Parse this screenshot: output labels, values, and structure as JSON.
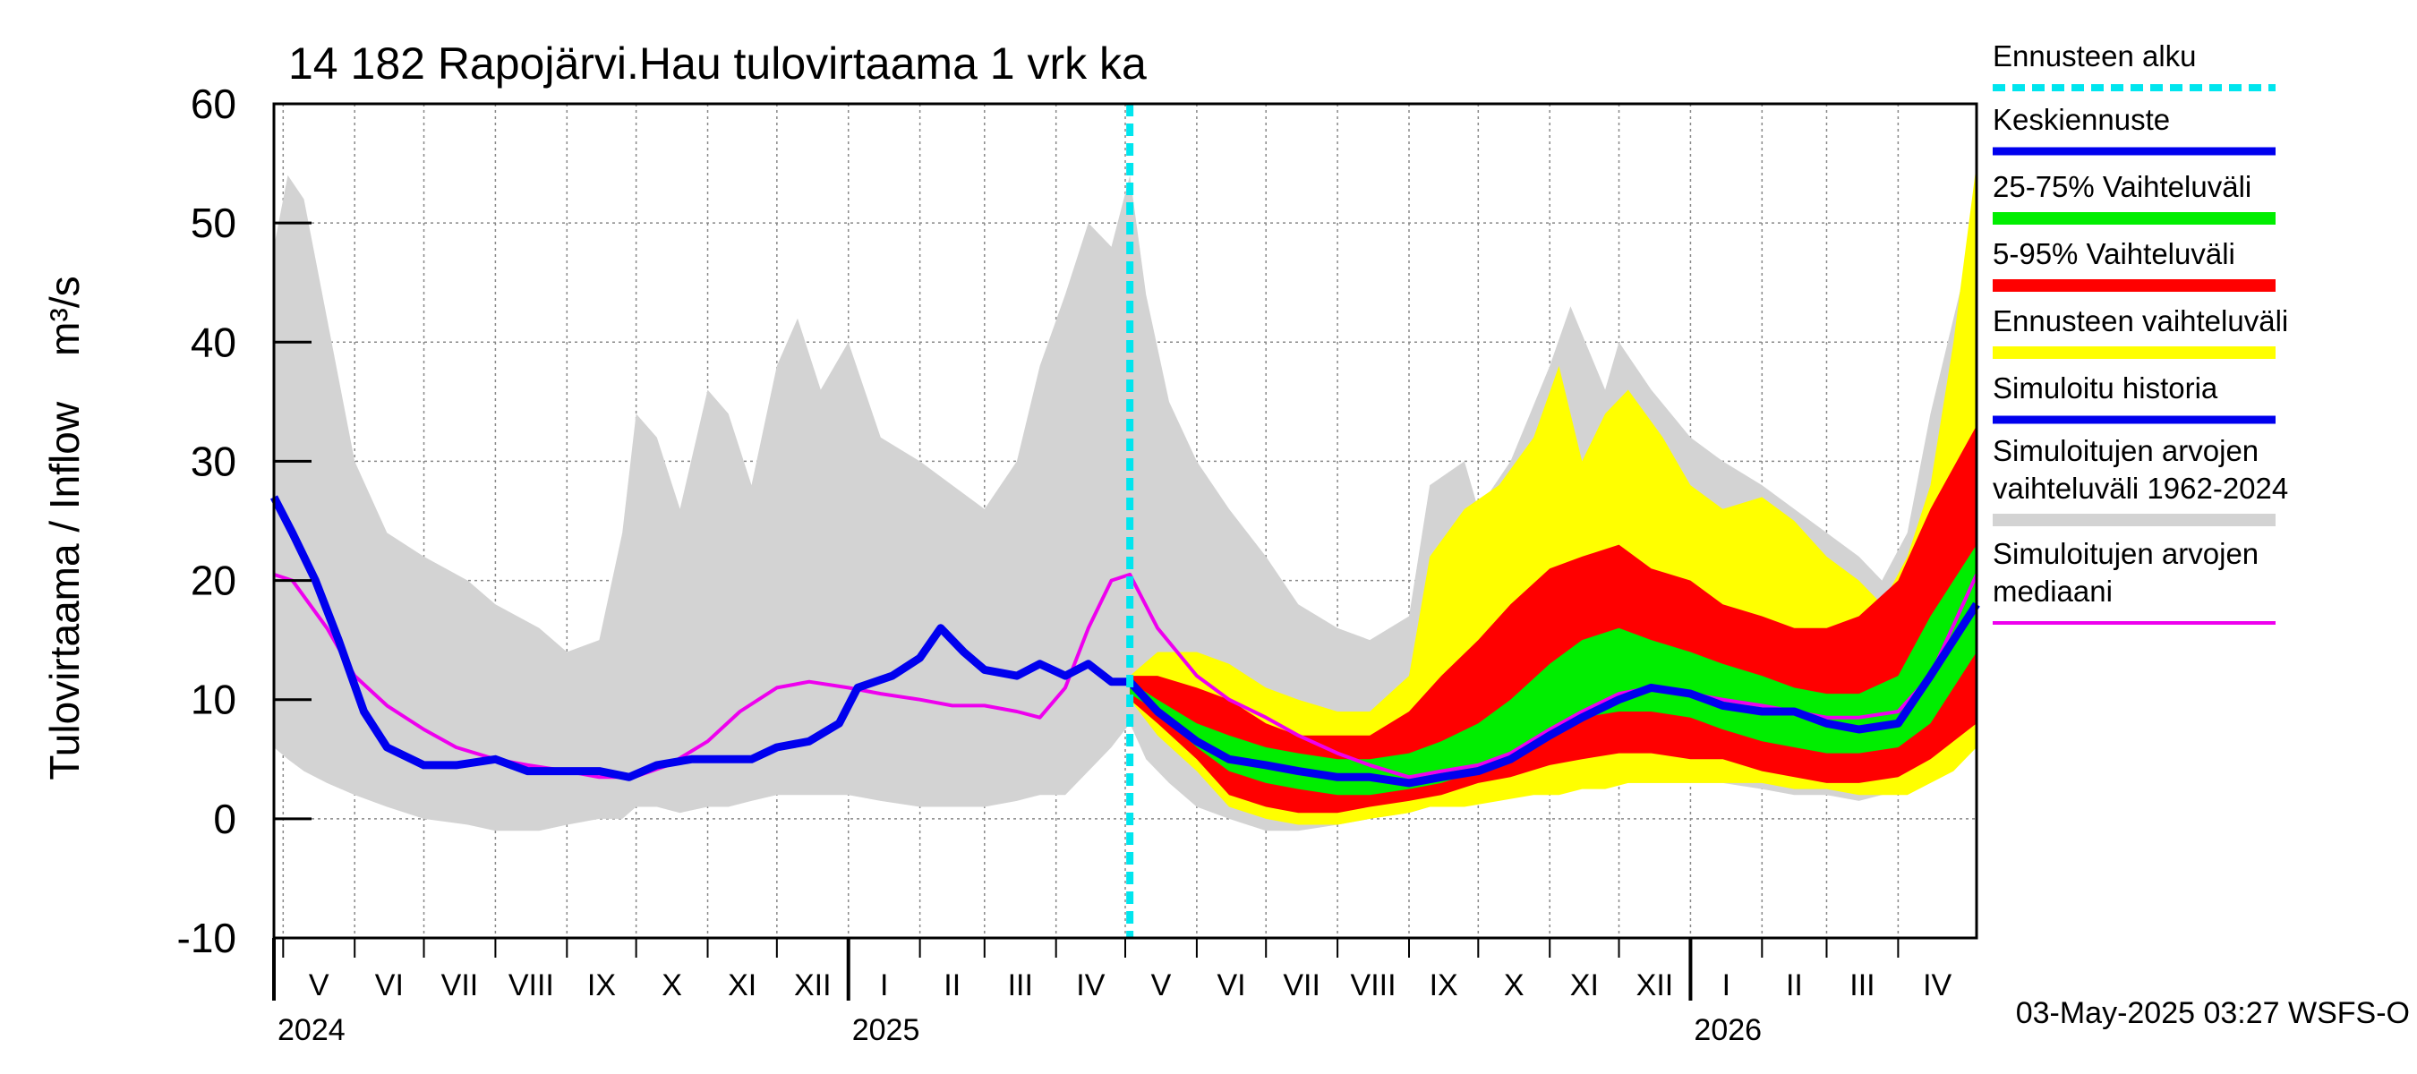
{
  "chart_data": {
    "type": "area",
    "title": "14 182 Rapojärvi.Hau tulovirtaama 1 vrk ka",
    "ylabel": "Tulovirtaama / Inflow    m³/s",
    "ylim": [
      -10,
      60
    ],
    "yticks": [
      -10,
      0,
      10,
      20,
      30,
      40,
      50,
      60
    ],
    "xlim": [
      "2024-04-27",
      "2026-05-05"
    ],
    "grid": true,
    "forecast_start": "2025-05-03",
    "months": [
      {
        "label": "V",
        "start": "2024-05-01"
      },
      {
        "label": "VI",
        "start": "2024-06-01"
      },
      {
        "label": "VII",
        "start": "2024-07-01"
      },
      {
        "label": "VIII",
        "start": "2024-08-01"
      },
      {
        "label": "IX",
        "start": "2024-09-01"
      },
      {
        "label": "X",
        "start": "2024-10-01"
      },
      {
        "label": "XI",
        "start": "2024-11-01"
      },
      {
        "label": "XII",
        "start": "2024-12-01"
      },
      {
        "label": "I",
        "start": "2025-01-01"
      },
      {
        "label": "II",
        "start": "2025-02-01"
      },
      {
        "label": "III",
        "start": "2025-03-01"
      },
      {
        "label": "IV",
        "start": "2025-04-01"
      },
      {
        "label": "V",
        "start": "2025-05-01"
      },
      {
        "label": "VI",
        "start": "2025-06-01"
      },
      {
        "label": "VII",
        "start": "2025-07-01"
      },
      {
        "label": "VIII",
        "start": "2025-08-01"
      },
      {
        "label": "IX",
        "start": "2025-09-01"
      },
      {
        "label": "X",
        "start": "2025-10-01"
      },
      {
        "label": "XI",
        "start": "2025-11-01"
      },
      {
        "label": "XII",
        "start": "2025-12-01"
      },
      {
        "label": "I",
        "start": "2026-01-01"
      },
      {
        "label": "II",
        "start": "2026-02-01"
      },
      {
        "label": "III",
        "start": "2026-03-01"
      },
      {
        "label": "IV",
        "start": "2026-04-01"
      }
    ],
    "years": [
      {
        "label": "2024",
        "date": "2024-04-27"
      },
      {
        "label": "2025",
        "date": "2025-01-01"
      },
      {
        "label": "2026",
        "date": "2026-01-01"
      }
    ],
    "legend": [
      {
        "label": "Ennusteen alku",
        "color": "#00e5ee",
        "style": "dashed"
      },
      {
        "label": "Keskiennuste",
        "color": "#0000ee",
        "style": "line"
      },
      {
        "label": "25-75% Vaihteluväli",
        "color": "#00ee00",
        "style": "band"
      },
      {
        "label": "5-95% Vaihteluväli",
        "color": "#ff0000",
        "style": "band"
      },
      {
        "label": "Ennusteen vaihteluväli",
        "color": "#ffff00",
        "style": "band"
      },
      {
        "label": "Simuloitu historia",
        "color": "#0000ee",
        "style": "line"
      },
      {
        "label": "Simuloitujen arvojen\nvaihteluväli 1962-2024",
        "color": "#d3d3d3",
        "style": "band"
      },
      {
        "label": "Simuloitujen arvojen\nmediaani",
        "color": "#ee00ee",
        "style": "line"
      }
    ],
    "series": [
      {
        "name": "Simuloitujen arvojen vaihteluväli 1962-2024",
        "kind": "band",
        "color": "#d3d3d3",
        "x": [
          "2024-04-27",
          "2024-05-03",
          "2024-05-10",
          "2024-05-20",
          "2024-06-01",
          "2024-06-15",
          "2024-07-01",
          "2024-07-20",
          "2024-08-01",
          "2024-08-20",
          "2024-09-01",
          "2024-09-15",
          "2024-09-25",
          "2024-10-01",
          "2024-10-10",
          "2024-10-20",
          "2024-11-01",
          "2024-11-10",
          "2024-11-20",
          "2024-12-01",
          "2024-12-10",
          "2024-12-20",
          "2025-01-01",
          "2025-01-15",
          "2025-02-01",
          "2025-02-15",
          "2025-03-01",
          "2025-03-15",
          "2025-03-25",
          "2025-04-05",
          "2025-04-15",
          "2025-04-25",
          "2025-05-03",
          "2025-05-10",
          "2025-05-20",
          "2025-06-01",
          "2025-06-15",
          "2025-07-01",
          "2025-07-15",
          "2025-08-01",
          "2025-08-15",
          "2025-09-01",
          "2025-09-10",
          "2025-09-25",
          "2025-10-01",
          "2025-10-15",
          "2025-11-01",
          "2025-11-10",
          "2025-11-25",
          "2025-12-01",
          "2025-12-15",
          "2026-01-01",
          "2026-01-15",
          "2026-02-01",
          "2026-02-15",
          "2026-03-01",
          "2026-03-15",
          "2026-03-25",
          "2026-04-05",
          "2026-04-15",
          "2026-04-25",
          "2026-05-05"
        ],
        "upper": [
          48,
          54,
          52,
          42,
          30,
          24,
          22,
          20,
          18,
          16,
          14,
          15,
          24,
          34,
          32,
          26,
          36,
          34,
          28,
          38,
          42,
          36,
          40,
          32,
          30,
          28,
          26,
          30,
          38,
          44,
          50,
          48,
          54,
          44,
          35,
          30,
          26,
          22,
          18,
          16,
          15,
          17,
          28,
          30,
          26,
          30,
          38,
          43,
          36,
          40,
          36,
          32,
          30,
          28,
          26,
          24,
          22,
          20,
          24,
          34,
          42,
          50
        ],
        "lower": [
          6,
          5,
          4,
          3,
          2,
          1,
          0,
          -0.5,
          -1,
          -1,
          -0.5,
          0,
          0,
          1,
          1,
          0.5,
          1,
          1,
          1.5,
          2,
          2,
          2,
          2,
          1.5,
          1,
          1,
          1,
          1.5,
          2,
          2,
          4,
          6,
          8,
          5,
          3,
          1,
          0,
          -1,
          -1,
          -0.5,
          0,
          0.5,
          1,
          1.5,
          2,
          2,
          2.5,
          2.5,
          3,
          3,
          3,
          3,
          3,
          2.5,
          2,
          2,
          1.5,
          2,
          2.5,
          3,
          5,
          7
        ]
      },
      {
        "name": "Ennusteen vaihteluväli",
        "kind": "band",
        "color": "#ffff00",
        "x": [
          "2025-05-03",
          "2025-05-15",
          "2025-06-01",
          "2025-06-15",
          "2025-07-01",
          "2025-07-15",
          "2025-08-01",
          "2025-08-15",
          "2025-09-01",
          "2025-09-10",
          "2025-09-25",
          "2025-10-10",
          "2025-10-25",
          "2025-11-05",
          "2025-11-15",
          "2025-11-25",
          "2025-12-05",
          "2025-12-20",
          "2026-01-01",
          "2026-01-15",
          "2026-02-01",
          "2026-02-15",
          "2026-03-01",
          "2026-03-15",
          "2026-03-25",
          "2026-04-05",
          "2026-04-15",
          "2026-04-25",
          "2026-05-05"
        ],
        "upper": [
          12,
          14,
          14,
          13,
          11,
          10,
          9,
          9,
          12,
          22,
          26,
          28,
          32,
          38,
          30,
          34,
          36,
          32,
          28,
          26,
          27,
          25,
          22,
          20,
          18,
          22,
          28,
          40,
          55
        ],
        "lower": [
          10,
          7,
          4,
          1,
          0,
          -0.5,
          -0.5,
          0,
          0.5,
          1,
          1,
          1.5,
          2,
          2,
          2.5,
          2.5,
          3,
          3,
          3,
          3,
          3,
          2.5,
          2.5,
          2,
          2,
          2,
          3,
          4,
          6
        ]
      },
      {
        "name": "5-95% Vaihteluväli",
        "kind": "band",
        "color": "#ff0000",
        "x": [
          "2025-05-03",
          "2025-05-15",
          "2025-06-01",
          "2025-06-15",
          "2025-07-01",
          "2025-07-15",
          "2025-08-01",
          "2025-08-15",
          "2025-09-01",
          "2025-09-15",
          "2025-10-01",
          "2025-10-15",
          "2025-11-01",
          "2025-11-15",
          "2025-12-01",
          "2025-12-15",
          "2026-01-01",
          "2026-01-15",
          "2026-02-01",
          "2026-02-15",
          "2026-03-01",
          "2026-03-15",
          "2026-04-01",
          "2026-04-15",
          "2026-05-05"
        ],
        "upper": [
          12,
          12,
          11,
          10,
          8,
          7,
          7,
          7,
          9,
          12,
          15,
          18,
          21,
          22,
          23,
          21,
          20,
          18,
          17,
          16,
          16,
          17,
          20,
          26,
          33
        ],
        "lower": [
          10,
          8,
          5,
          2,
          1,
          0.5,
          0.5,
          1,
          1.5,
          2,
          3,
          3.5,
          4.5,
          5,
          5.5,
          5.5,
          5,
          5,
          4,
          3.5,
          3,
          3,
          3.5,
          5,
          8
        ]
      },
      {
        "name": "25-75% Vaihteluväli",
        "kind": "band",
        "color": "#00ee00",
        "x": [
          "2025-05-03",
          "2025-05-15",
          "2025-06-01",
          "2025-06-15",
          "2025-07-01",
          "2025-07-15",
          "2025-08-01",
          "2025-08-15",
          "2025-09-01",
          "2025-09-15",
          "2025-10-01",
          "2025-10-15",
          "2025-11-01",
          "2025-11-15",
          "2025-12-01",
          "2025-12-15",
          "2026-01-01",
          "2026-01-15",
          "2026-02-01",
          "2026-02-15",
          "2026-03-01",
          "2026-03-15",
          "2026-04-01",
          "2026-04-15",
          "2026-05-05"
        ],
        "upper": [
          11.5,
          10,
          8,
          7,
          6,
          5.5,
          5,
          5,
          5.5,
          6.5,
          8,
          10,
          13,
          15,
          16,
          15,
          14,
          13,
          12,
          11,
          10.5,
          10.5,
          12,
          17,
          23
        ],
        "lower": [
          10.5,
          9,
          6,
          4,
          3,
          2.5,
          2,
          2,
          2.5,
          3,
          4,
          5,
          7,
          8.5,
          9,
          9,
          8.5,
          7.5,
          6.5,
          6,
          5.5,
          5.5,
          6,
          8,
          14
        ]
      },
      {
        "name": "Simuloitujen arvojen mediaani",
        "kind": "line",
        "color": "#ee00ee",
        "x": [
          "2024-04-27",
          "2024-05-05",
          "2024-05-20",
          "2024-06-01",
          "2024-06-15",
          "2024-07-01",
          "2024-07-15",
          "2024-08-01",
          "2024-08-15",
          "2024-09-01",
          "2024-09-15",
          "2024-09-30",
          "2024-10-15",
          "2024-11-01",
          "2024-11-15",
          "2024-12-01",
          "2024-12-15",
          "2025-01-01",
          "2025-01-15",
          "2025-02-01",
          "2025-02-15",
          "2025-03-01",
          "2025-03-15",
          "2025-03-25",
          "2025-04-05",
          "2025-04-15",
          "2025-04-25",
          "2025-05-03",
          "2025-05-15",
          "2025-06-01",
          "2025-06-15",
          "2025-07-01",
          "2025-07-15",
          "2025-08-01",
          "2025-08-15",
          "2025-09-01",
          "2025-09-15",
          "2025-10-01",
          "2025-10-15",
          "2025-11-01",
          "2025-11-15",
          "2025-12-01",
          "2025-12-15",
          "2026-01-01",
          "2026-01-15",
          "2026-02-01",
          "2026-02-15",
          "2026-03-01",
          "2026-03-15",
          "2026-04-01",
          "2026-04-15",
          "2026-05-05"
        ],
        "y": [
          20.5,
          20,
          16,
          12,
          9.5,
          7.5,
          6,
          5,
          4.5,
          4,
          3.5,
          3.5,
          4.5,
          6.5,
          9,
          11,
          11.5,
          11,
          10.5,
          10,
          9.5,
          9.5,
          9,
          8.5,
          11,
          16,
          20,
          20.5,
          16,
          12,
          10,
          8.5,
          7,
          5.5,
          4.5,
          3.5,
          4,
          4.5,
          5.5,
          7.5,
          9,
          10.5,
          11,
          10.5,
          10,
          9.5,
          9,
          8.5,
          8.5,
          9,
          12,
          20.5
        ]
      },
      {
        "name": "Keskiennuste / Simuloitu historia",
        "kind": "line",
        "color": "#0000ee",
        "x": [
          "2024-04-27",
          "2024-05-05",
          "2024-05-15",
          "2024-05-25",
          "2024-06-05",
          "2024-06-15",
          "2024-07-01",
          "2024-07-15",
          "2024-08-01",
          "2024-08-15",
          "2024-09-01",
          "2024-09-15",
          "2024-09-28",
          "2024-10-10",
          "2024-10-25",
          "2024-11-05",
          "2024-11-20",
          "2024-12-01",
          "2024-12-15",
          "2024-12-28",
          "2025-01-05",
          "2025-01-20",
          "2025-02-01",
          "2025-02-10",
          "2025-02-20",
          "2025-03-01",
          "2025-03-15",
          "2025-03-25",
          "2025-04-05",
          "2025-04-15",
          "2025-04-25",
          "2025-05-03",
          "2025-05-15",
          "2025-06-01",
          "2025-06-15",
          "2025-07-01",
          "2025-07-15",
          "2025-08-01",
          "2025-08-15",
          "2025-09-01",
          "2025-09-15",
          "2025-10-01",
          "2025-10-15",
          "2025-11-01",
          "2025-11-15",
          "2025-12-01",
          "2025-12-15",
          "2026-01-01",
          "2026-01-15",
          "2026-02-01",
          "2026-02-15",
          "2026-03-01",
          "2026-03-15",
          "2026-04-01",
          "2026-04-15",
          "2026-05-05"
        ],
        "y": [
          27,
          24,
          20,
          15,
          9,
          6,
          4.5,
          4.5,
          5,
          4,
          4,
          4,
          3.5,
          4.5,
          5,
          5,
          5,
          6,
          6.5,
          8,
          11,
          12,
          13.5,
          16,
          14,
          12.5,
          12,
          13,
          12,
          13,
          11.5,
          11.5,
          9,
          6.5,
          5,
          4.5,
          4,
          3.5,
          3.5,
          3,
          3.5,
          4,
          5,
          7,
          8.5,
          10,
          11,
          10.5,
          9.5,
          9,
          9,
          8,
          7.5,
          8,
          12,
          18
        ]
      }
    ]
  },
  "footer": "03-May-2025 03:27 WSFS-O"
}
